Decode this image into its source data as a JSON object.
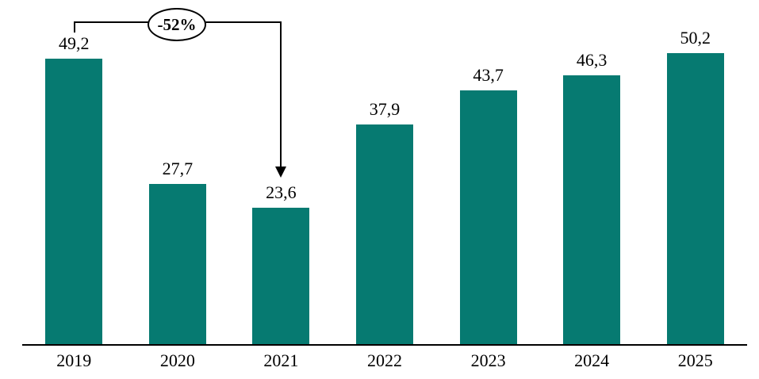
{
  "chart_data": {
    "type": "bar",
    "categories": [
      "2019",
      "2020",
      "2021",
      "2022",
      "2023",
      "2024",
      "2025"
    ],
    "values": [
      49.2,
      27.7,
      23.6,
      37.9,
      43.7,
      46.3,
      50.2
    ],
    "value_labels": [
      "49,2",
      "27,7",
      "23,6",
      "37,9",
      "43,7",
      "46,3",
      "50,2"
    ],
    "title": "",
    "xlabel": "",
    "ylabel": "",
    "ylim": [
      0,
      55
    ],
    "grid": false,
    "legend": false,
    "bar_color": "#067A71",
    "axis_color": "#000000",
    "annotation": {
      "label": "-52%",
      "from_category": "2019",
      "to_category": "2021"
    }
  }
}
